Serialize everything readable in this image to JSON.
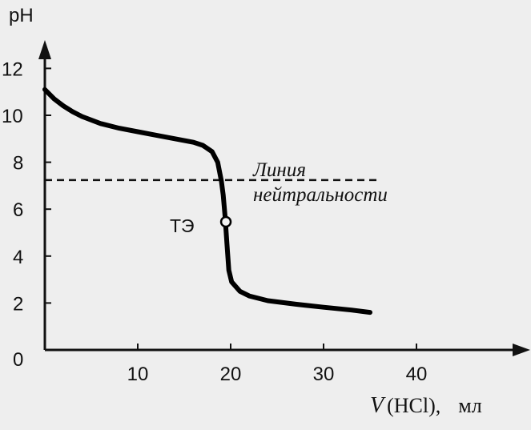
{
  "chart_data": {
    "type": "line",
    "title": "",
    "ylabel": "pH",
    "xlabel": {
      "symbol": "V",
      "substance": "(HCl),",
      "unit": "мл"
    },
    "xlim": [
      0,
      50
    ],
    "ylim": [
      0,
      13
    ],
    "x_ticks": [
      10,
      20,
      30,
      40
    ],
    "y_ticks": [
      0,
      2,
      4,
      6,
      8,
      10,
      12
    ],
    "grid": false,
    "series": [
      {
        "points": [
          [
            0,
            11.1
          ],
          [
            1,
            10.7
          ],
          [
            2,
            10.4
          ],
          [
            3,
            10.15
          ],
          [
            4,
            9.95
          ],
          [
            6,
            9.65
          ],
          [
            8,
            9.45
          ],
          [
            10,
            9.3
          ],
          [
            12,
            9.15
          ],
          [
            14,
            9.0
          ],
          [
            16,
            8.85
          ],
          [
            17,
            8.72
          ],
          [
            18,
            8.45
          ],
          [
            18.6,
            8.0
          ],
          [
            19.0,
            7.2
          ],
          [
            19.2,
            6.6
          ],
          [
            19.4,
            5.7
          ],
          [
            19.6,
            4.5
          ],
          [
            19.8,
            3.4
          ],
          [
            20.1,
            2.9
          ],
          [
            21,
            2.5
          ],
          [
            22,
            2.3
          ],
          [
            24,
            2.1
          ],
          [
            27,
            1.95
          ],
          [
            30,
            1.82
          ],
          [
            33,
            1.7
          ],
          [
            35,
            1.6
          ]
        ]
      }
    ],
    "reference_lines": [
      {
        "y": 7,
        "x_range": [
          0,
          36
        ],
        "style": "dashed",
        "label_line1": "Линия",
        "label_line2": "нейтральности"
      }
    ],
    "equivalence_point": {
      "x": 19.4,
      "y": 5.7,
      "label": "ТЭ"
    }
  }
}
